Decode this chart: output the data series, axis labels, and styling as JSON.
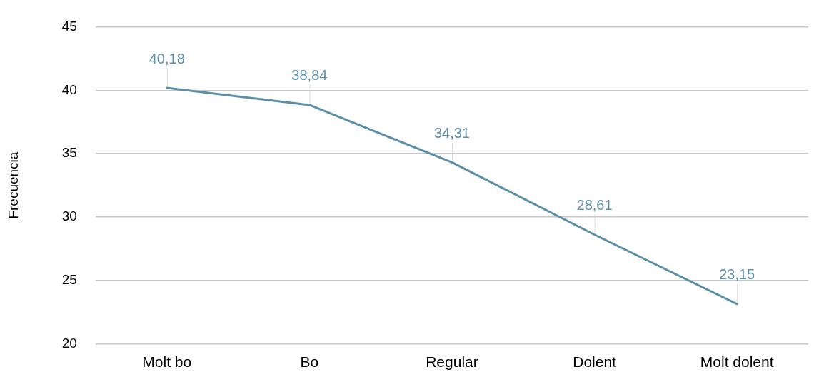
{
  "chart_data": {
    "type": "line",
    "ylabel": "Frecuencia",
    "categories": [
      "Molt bo",
      "Bo",
      "Regular",
      "Dolent",
      "Molt dolent"
    ],
    "series": [
      {
        "color": "#5b8fa8",
        "values": [
          40.18,
          38.84,
          34.31,
          28.61,
          23.15
        ],
        "value_labels": [
          "40,18",
          "38,84",
          "34,31",
          "28,61",
          "23,15"
        ]
      }
    ],
    "ylim": [
      20,
      45
    ],
    "yticks": [
      20,
      25,
      30,
      35,
      40,
      45
    ],
    "grid": "y",
    "legend": false,
    "marker": "none",
    "line_style": "solid"
  }
}
